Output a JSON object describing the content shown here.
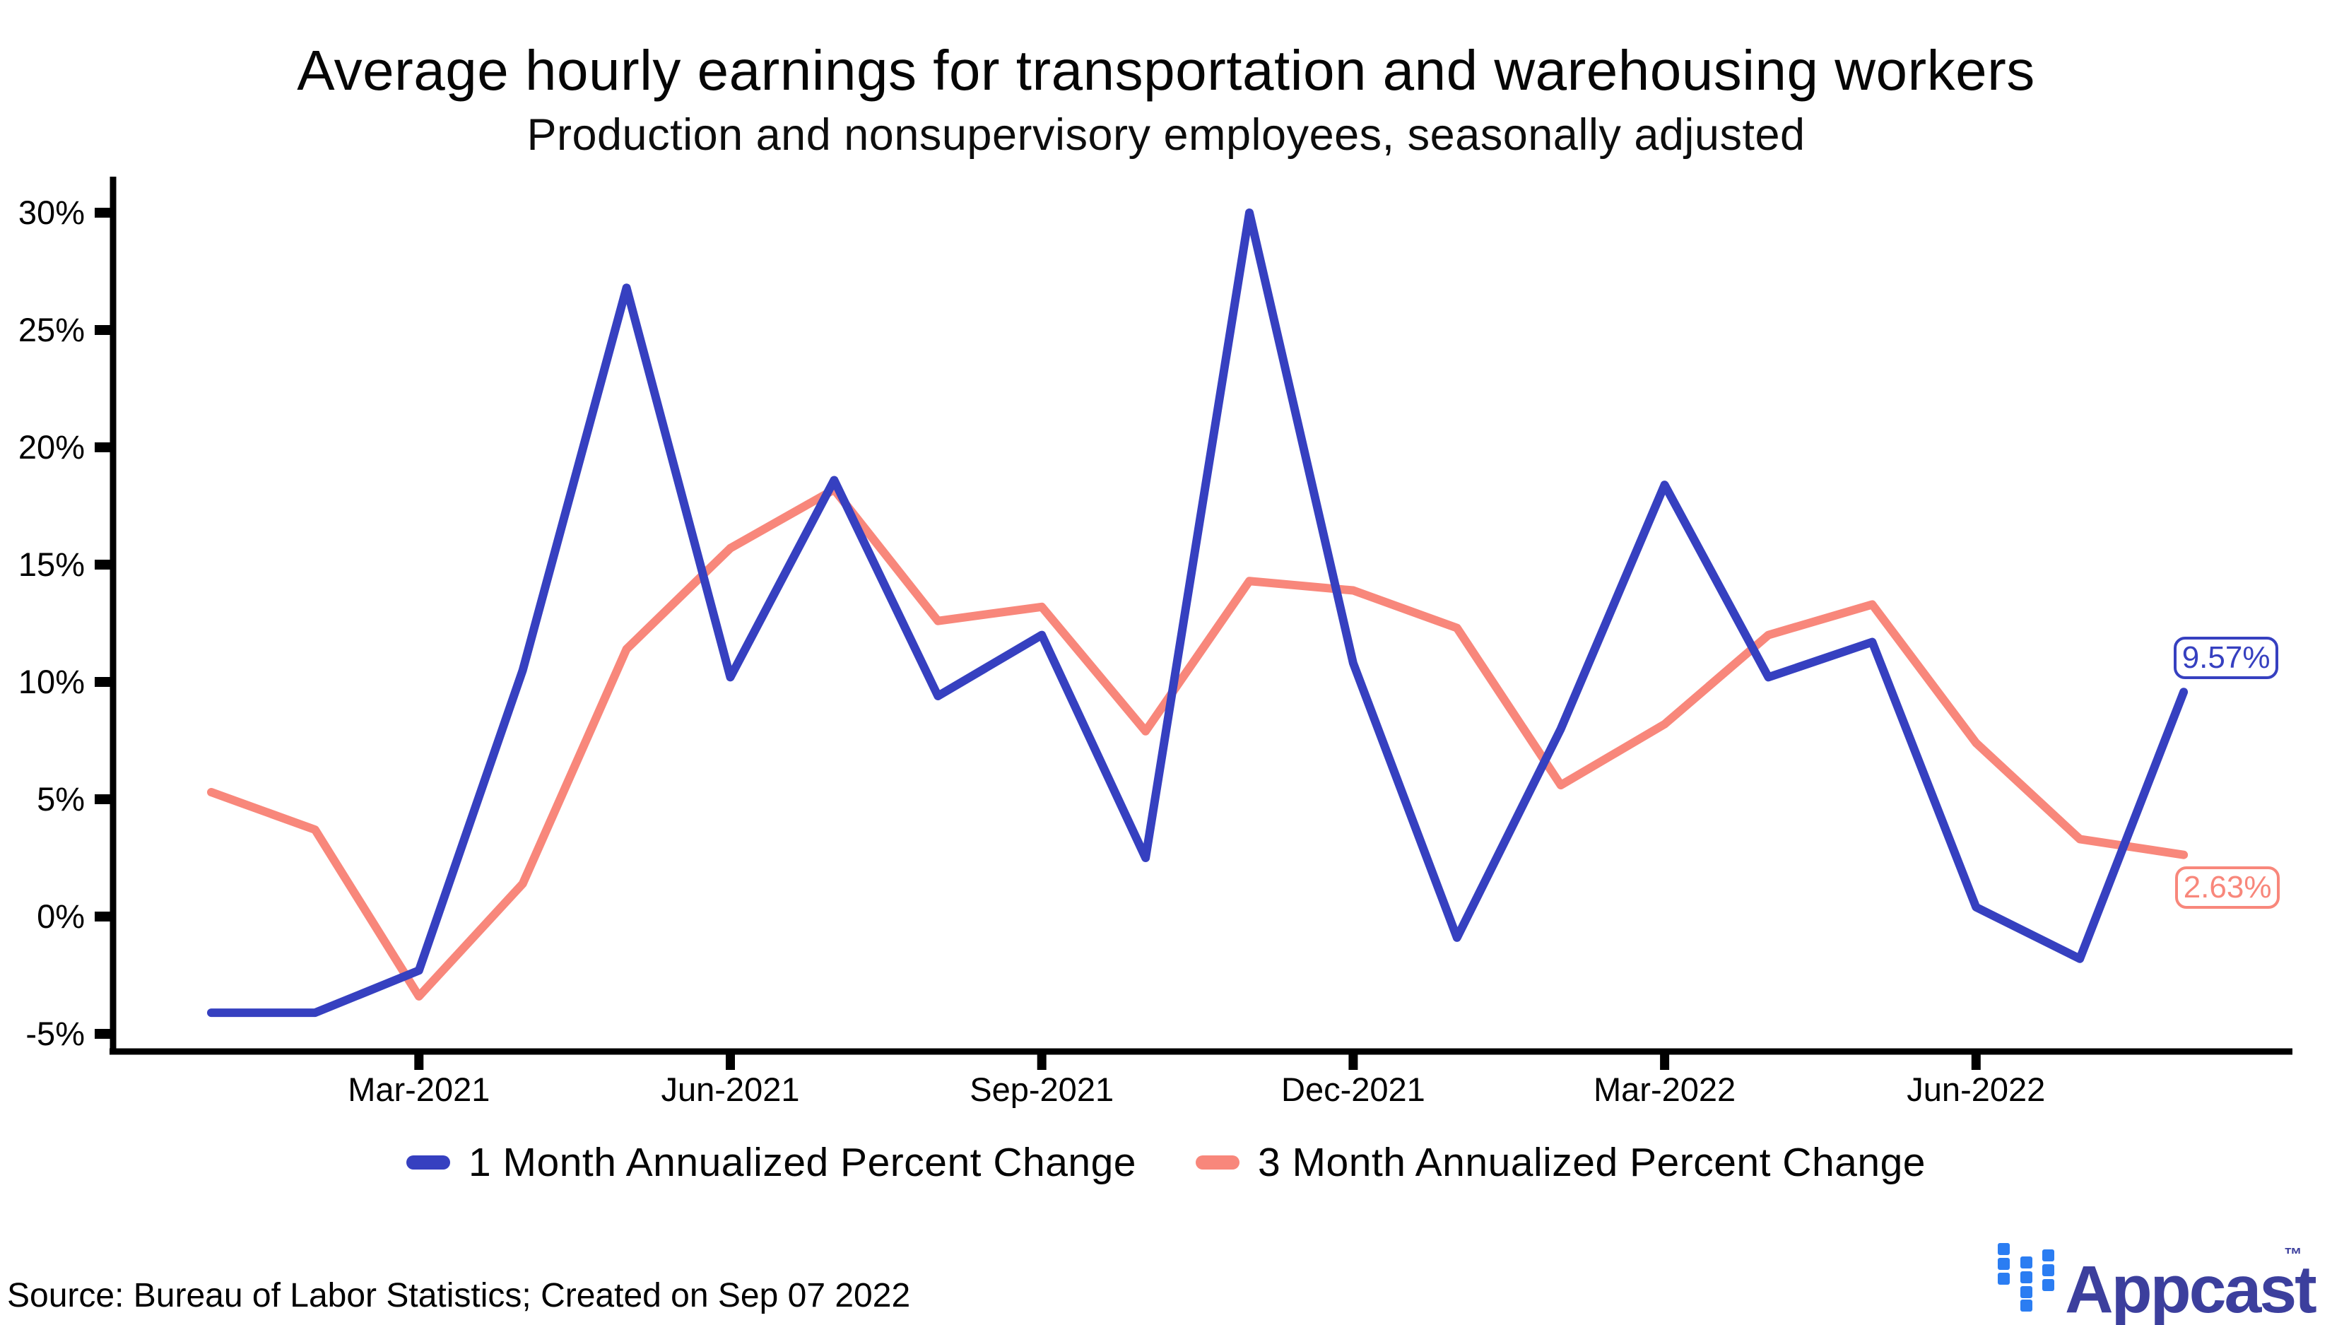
{
  "title": "Average hourly earnings for transportation and warehousing workers",
  "subtitle": "Production and nonsupervisory employees, seasonally adjusted",
  "source": "Source: Bureau of Labor Statistics; Created on Sep 07 2022",
  "logo": {
    "brand": "Appcast",
    "tm": "™"
  },
  "colors": {
    "series1_blue": "#3640c0",
    "series2_salmon": "#f8877b",
    "axis": "#000000",
    "logo_icon_blue": "#2b7df2",
    "logo_text_indigo": "#3c3f9d"
  },
  "chart_data": {
    "type": "line",
    "categories": [
      "Jan-2021",
      "Feb-2021",
      "Mar-2021",
      "Apr-2021",
      "May-2021",
      "Jun-2021",
      "Jul-2021",
      "Aug-2021",
      "Sep-2021",
      "Oct-2021",
      "Nov-2021",
      "Dec-2021",
      "Jan-2022",
      "Feb-2022",
      "Mar-2022",
      "Apr-2022",
      "May-2022",
      "Jun-2022",
      "Jul-2022",
      "Aug-2022"
    ],
    "x_tick_positions": [
      2,
      5,
      8,
      11,
      14,
      17
    ],
    "x_tick_labels": [
      "Mar-2021",
      "Jun-2021",
      "Sep-2021",
      "Dec-2021",
      "Mar-2022",
      "Jun-2022"
    ],
    "y_ticks": [
      30,
      25,
      20,
      15,
      10,
      5,
      0,
      -5
    ],
    "y_unit": "%",
    "ylim": [
      -6.5,
      31.5
    ],
    "grid": false,
    "legend_position": "bottom",
    "series": [
      {
        "name": "1 Month Annualized Percent Change",
        "color": "#3640c0",
        "end_label": "9.57%",
        "values": [
          -4.1,
          -4.1,
          -2.3,
          10.5,
          26.8,
          10.2,
          18.6,
          9.4,
          12.0,
          2.5,
          30.0,
          10.8,
          -0.9,
          8.0,
          18.4,
          10.2,
          11.7,
          0.4,
          -1.8,
          9.57
        ]
      },
      {
        "name": "3 Month Annualized Percent Change",
        "color": "#f8877b",
        "end_label": "2.63%",
        "values": [
          5.3,
          3.7,
          -3.4,
          1.4,
          11.4,
          15.7,
          18.2,
          12.6,
          13.2,
          7.9,
          14.3,
          13.9,
          12.3,
          5.6,
          8.2,
          12.0,
          13.3,
          7.4,
          3.3,
          2.63
        ]
      }
    ]
  }
}
